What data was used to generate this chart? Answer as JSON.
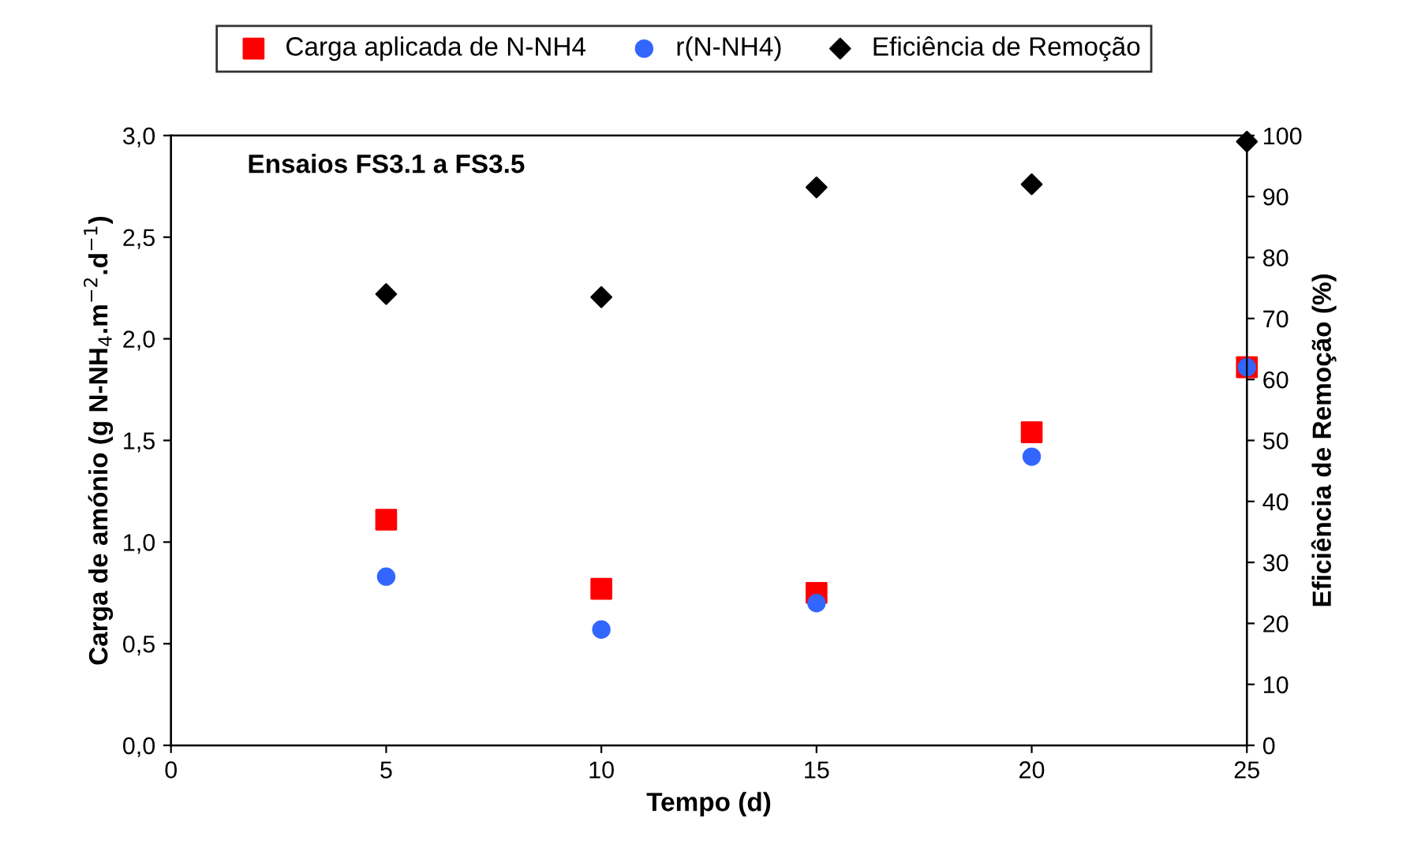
{
  "chart_data": {
    "type": "scatter",
    "title": "Ensaios FS3.1 a FS3.5",
    "xlabel": "Tempo (d)",
    "ylabel": "Carga de amónio (g N-NH$_{4}$.m$^{−2}$.d$^{−1}$)",
    "y2label": "Eficiência de Remoção (%)",
    "x": [
      5,
      10,
      15,
      20,
      25
    ],
    "series": [
      {
        "name": "Carga aplicada de N-NH4",
        "color": "#ff0000",
        "marker": "square",
        "values": [
          1.11,
          0.77,
          0.75,
          1.54,
          1.86
        ]
      },
      {
        "name": "r(N-NH4)",
        "color": "#3366ff",
        "marker": "circle",
        "values": [
          0.83,
          0.57,
          0.7,
          1.42,
          1.86
        ]
      },
      {
        "name": "Eficiência de Remoção",
        "color": "#000000",
        "marker": "diamond",
        "axis": "y2",
        "values": [
          74,
          73.5,
          91.5,
          92,
          99
        ]
      }
    ],
    "xlim": [
      0,
      25
    ],
    "xticks": [
      0,
      5,
      10,
      15,
      20,
      25
    ],
    "ylim": [
      0,
      3
    ],
    "yticks": [
      {
        "value": 0,
        "label": "0,0"
      },
      {
        "value": 0.5,
        "label": "0,5"
      },
      {
        "value": 1,
        "label": "1,0"
      },
      {
        "value": 1.5,
        "label": "1,5"
      },
      {
        "value": 2,
        "label": "2,0"
      },
      {
        "value": 2.5,
        "label": "2,5"
      },
      {
        "value": 3,
        "label": "3,0"
      }
    ],
    "y2lim": [
      0,
      100
    ],
    "y2ticks": [
      0,
      10,
      20,
      30,
      40,
      50,
      60,
      70,
      80,
      90,
      100
    ],
    "grid": false,
    "legend": "top"
  }
}
